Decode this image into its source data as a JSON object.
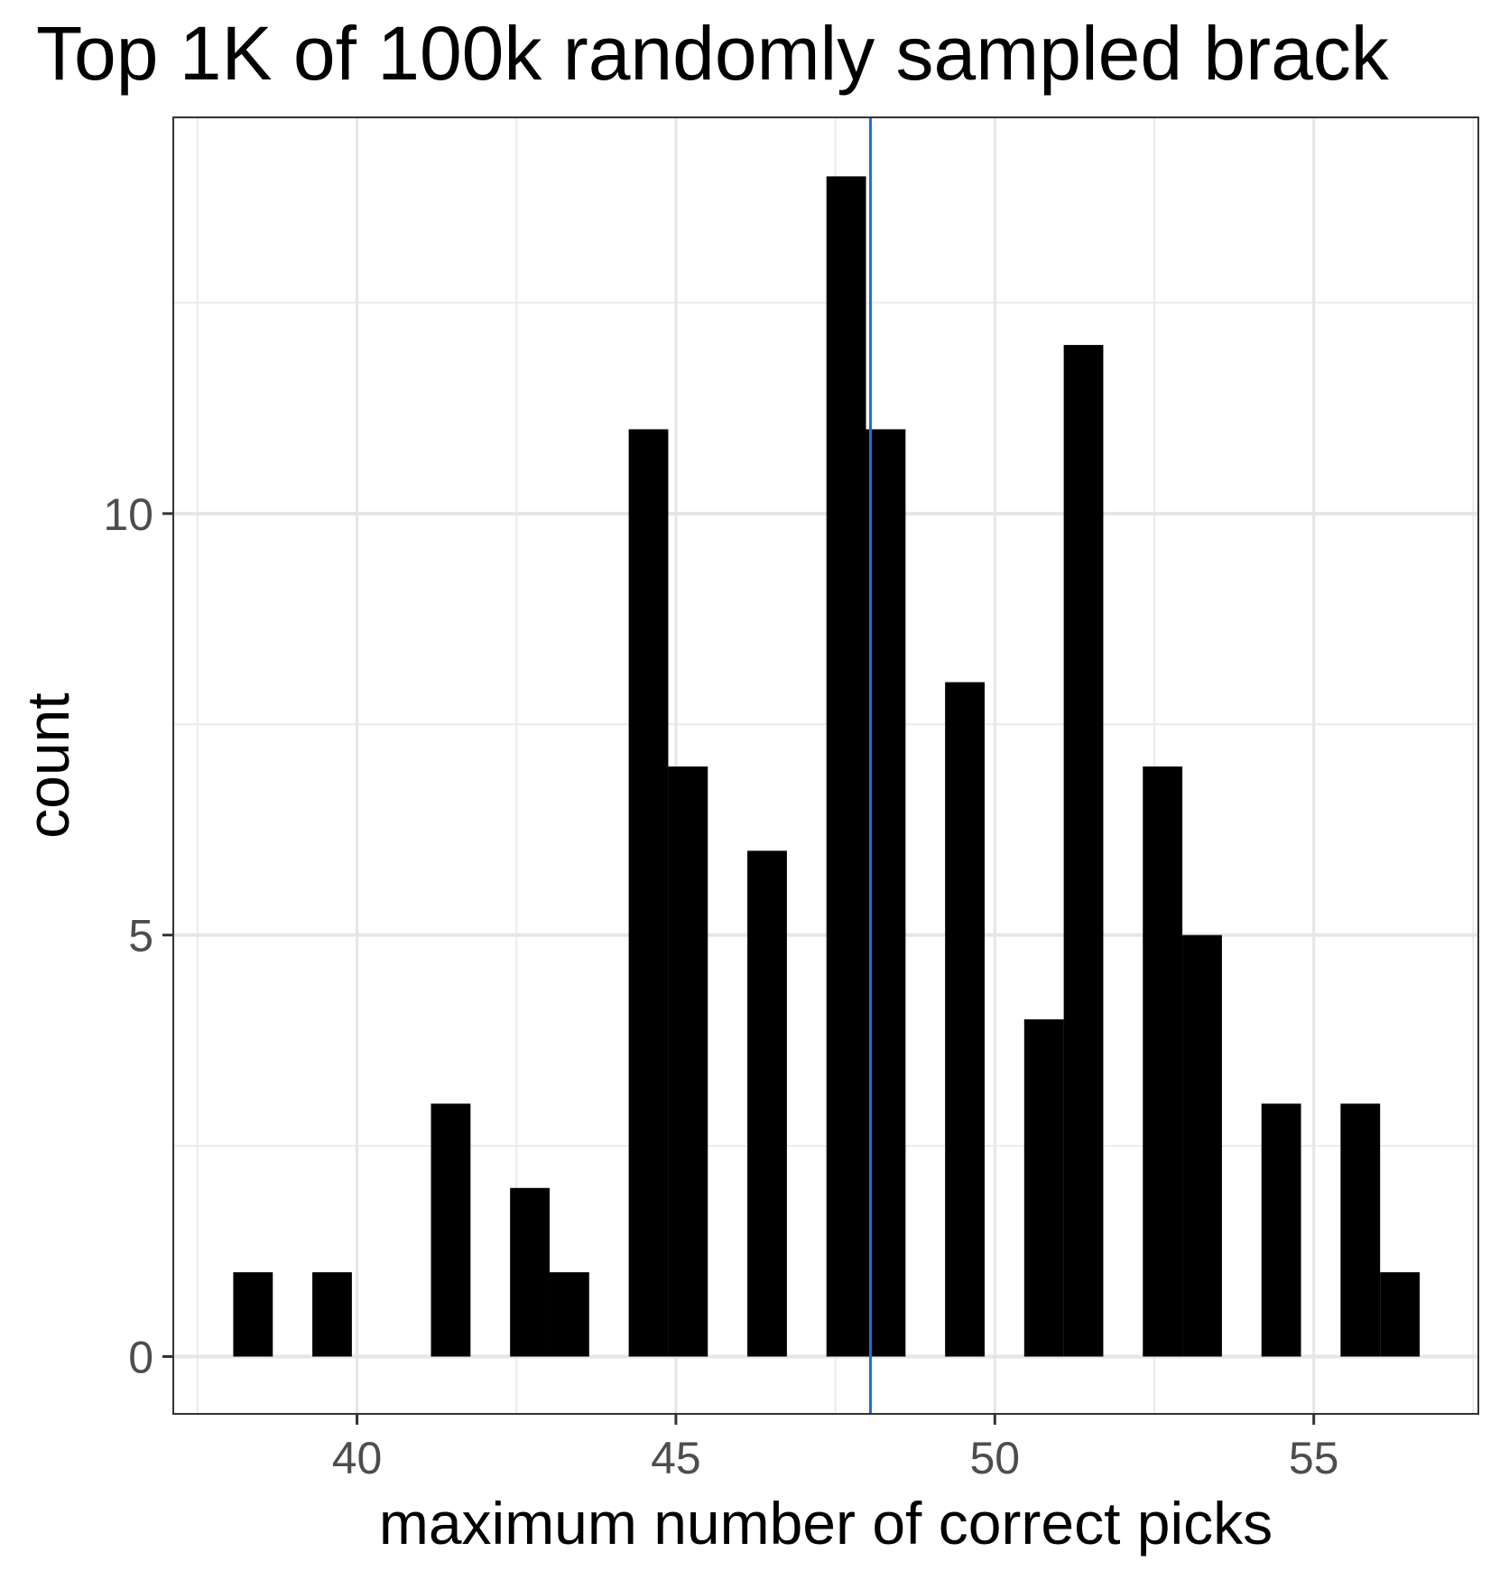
{
  "chart_data": {
    "type": "bar",
    "title": "Top 1K of 100k randomly sampled brack",
    "xlabel": "maximum number of correct picks",
    "ylabel": "count",
    "x_ticks": [
      40,
      45,
      50,
      55
    ],
    "y_ticks": [
      0,
      5,
      10
    ],
    "xlim": [
      37.12,
      57.58
    ],
    "ylim": [
      -0.68,
      14.7
    ],
    "bin_width": 0.62,
    "bins": [
      {
        "start": 38.06,
        "count": 1
      },
      {
        "start": 39.3,
        "count": 1
      },
      {
        "start": 41.16,
        "count": 3
      },
      {
        "start": 42.4,
        "count": 2
      },
      {
        "start": 43.02,
        "count": 1
      },
      {
        "start": 44.26,
        "count": 11
      },
      {
        "start": 44.88,
        "count": 7
      },
      {
        "start": 46.12,
        "count": 6
      },
      {
        "start": 47.36,
        "count": 14
      },
      {
        "start": 47.98,
        "count": 11
      },
      {
        "start": 49.22,
        "count": 8
      },
      {
        "start": 50.46,
        "count": 4
      },
      {
        "start": 51.08,
        "count": 12
      },
      {
        "start": 52.32,
        "count": 7
      },
      {
        "start": 52.94,
        "count": 5
      },
      {
        "start": 54.18,
        "count": 3
      },
      {
        "start": 55.42,
        "count": 3
      },
      {
        "start": 56.04,
        "count": 1
      }
    ],
    "reference_line": {
      "x": 48.05,
      "color": "#1a6fdf"
    },
    "bar_color": "#000000",
    "grid": true,
    "legend": "none"
  }
}
